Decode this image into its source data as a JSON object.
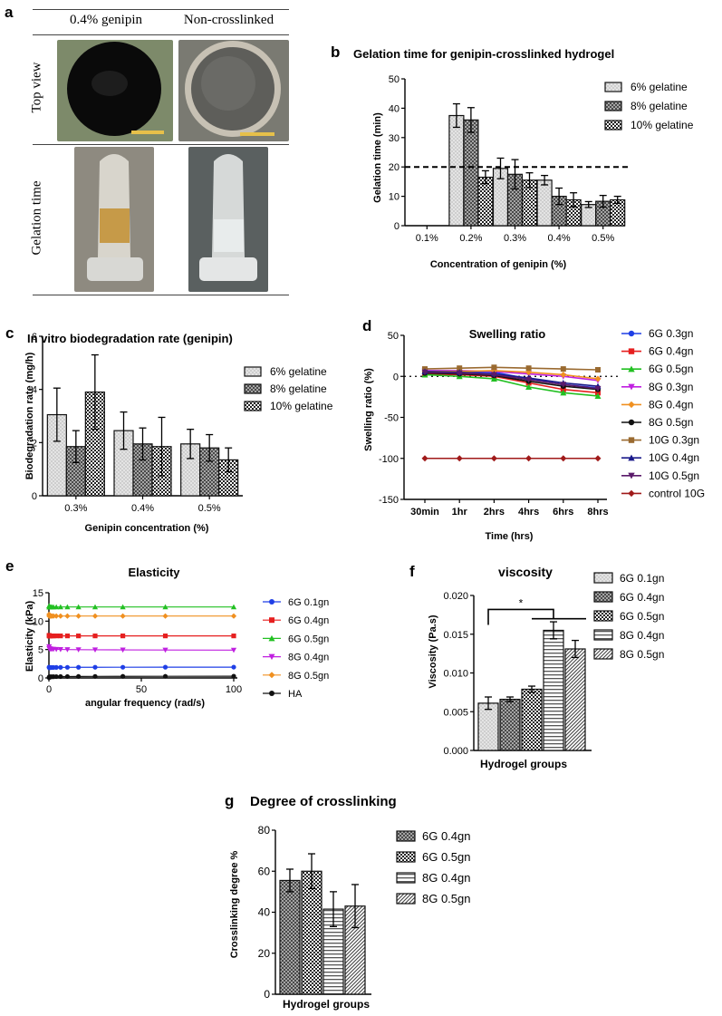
{
  "panel_a": {
    "letter": "a",
    "col1": "0.4% genipin",
    "col2": "Non-crosslinked",
    "row1": "Top view",
    "row2": "Gelation time",
    "photos": [
      "genipin-disc-photo",
      "noncrosslinked-disc-photo",
      "genipin-tube-photo",
      "noncrosslinked-tube-photo"
    ]
  },
  "colors": {
    "bar_edge": "#111111",
    "light_fill": "#d9d9d9",
    "mid_fill": "#9a9a9a",
    "dark_fill": "#3a3a3a"
  },
  "chart_data": [
    {
      "id": "b",
      "letter": "b",
      "type": "bar",
      "title": "Gelation time for genipin-crosslinked hydrogel",
      "xlabel": "Concentration of genipin (%)",
      "ylabel": "Gelation time (min)",
      "ylim": [
        0,
        50
      ],
      "yticks": [
        0,
        10,
        20,
        30,
        40,
        50
      ],
      "categories": [
        "0.1%",
        "0.2%",
        "0.3%",
        "0.4%",
        "0.5%"
      ],
      "series": [
        {
          "name": "6% gelatine",
          "pattern": "dots",
          "values": [
            0,
            37.5,
            19.5,
            15.5,
            7.2
          ],
          "errors": [
            0,
            4,
            3.5,
            1.6,
            1.0
          ]
        },
        {
          "name": "8% gelatine",
          "pattern": "cross",
          "values": [
            0,
            36,
            17.5,
            10,
            8.3
          ],
          "errors": [
            0,
            4.2,
            5,
            2.8,
            2.0
          ]
        },
        {
          "name": "10% gelatine",
          "pattern": "check",
          "values": [
            0,
            16.5,
            15.5,
            8.8,
            8.8
          ],
          "errors": [
            0,
            2.2,
            2.5,
            2.4,
            1.2
          ]
        }
      ],
      "reference_line": 20,
      "legend_position": "top-right"
    },
    {
      "id": "c",
      "letter": "c",
      "type": "bar",
      "title": "In vitro biodegradation rate (genipin)",
      "xlabel": "Genipin concentration (%)",
      "ylabel": "Biodegradation rate (mg/h)",
      "ylim": [
        0,
        6
      ],
      "yticks": [
        0,
        2,
        4,
        6
      ],
      "categories": [
        "0.3%",
        "0.4%",
        "0.5%"
      ],
      "series": [
        {
          "name": "6% gelatine",
          "pattern": "dots",
          "values": [
            3.05,
            2.45,
            1.95
          ],
          "errors": [
            1.0,
            0.7,
            0.55
          ]
        },
        {
          "name": "8% gelatine",
          "pattern": "cross",
          "values": [
            1.85,
            1.95,
            1.8
          ],
          "errors": [
            0.6,
            0.6,
            0.5
          ]
        },
        {
          "name": "10% gelatine",
          "pattern": "check",
          "values": [
            3.9,
            1.85,
            1.35
          ],
          "errors": [
            1.4,
            1.1,
            0.45
          ]
        }
      ],
      "legend_position": "top-right"
    },
    {
      "id": "d",
      "letter": "d",
      "type": "line",
      "title": "Swelling ratio",
      "xlabel": "Time (hrs)",
      "ylabel": "Swelling ratio (%)",
      "ylim": [
        -150,
        50
      ],
      "yticks": [
        -150,
        -100,
        -50,
        0,
        50
      ],
      "categories": [
        "30min",
        "1hr",
        "2hrs",
        "4hrs",
        "6hrs",
        "8hrs"
      ],
      "zero_line": true,
      "series": [
        {
          "name": "6G 0.3gn",
          "color": "#1f3fe6",
          "marker": "circle",
          "values": [
            5,
            6,
            5,
            -3,
            -10,
            -14
          ]
        },
        {
          "name": "6G 0.4gn",
          "color": "#e61f1f",
          "marker": "square",
          "values": [
            3,
            2,
            0,
            -8,
            -16,
            -20
          ]
        },
        {
          "name": "6G 0.5gn",
          "color": "#22c022",
          "marker": "triangle-up",
          "values": [
            2,
            0,
            -3,
            -13,
            -20,
            -24
          ]
        },
        {
          "name": "8G 0.3gn",
          "color": "#c020e0",
          "marker": "triangle-down",
          "values": [
            7,
            7,
            6,
            3,
            0,
            -5
          ]
        },
        {
          "name": "8G 0.4gn",
          "color": "#f09020",
          "marker": "diamond",
          "values": [
            6,
            6,
            7,
            5,
            2,
            -3
          ]
        },
        {
          "name": "8G 0.5gn",
          "color": "#111111",
          "marker": "circle",
          "values": [
            4,
            3,
            1,
            -6,
            -12,
            -16
          ]
        },
        {
          "name": "10G 0.3gn",
          "color": "#9a6a30",
          "marker": "square",
          "values": [
            9,
            10,
            11,
            10,
            9,
            8
          ]
        },
        {
          "name": "10G 0.4gn",
          "color": "#1a1a8a",
          "marker": "triangle-up",
          "values": [
            6,
            5,
            3,
            -2,
            -8,
            -12
          ]
        },
        {
          "name": "10G 0.5gn",
          "color": "#5a1a6a",
          "marker": "triangle-down",
          "values": [
            5,
            4,
            2,
            -4,
            -10,
            -15
          ]
        },
        {
          "name": "control 10G",
          "color": "#a01a1a",
          "marker": "diamond",
          "values": [
            -100,
            -100,
            -100,
            -100,
            -100,
            -100
          ]
        }
      ]
    },
    {
      "id": "e",
      "letter": "e",
      "type": "scatter",
      "title": "Elasticity",
      "xlabel": "angular frequency (rad/s)",
      "ylabel": "Elasticity (kPa)",
      "xlim": [
        0,
        100
      ],
      "ylim": [
        0,
        15
      ],
      "xticks": [
        0,
        50,
        100
      ],
      "yticks": [
        0,
        5,
        10,
        15
      ],
      "x": [
        0.1,
        0.16,
        0.25,
        0.4,
        0.63,
        1,
        1.6,
        2.5,
        4,
        6.3,
        10,
        16,
        25,
        40,
        63,
        100
      ],
      "series": [
        {
          "name": "6G 0.1gn",
          "color": "#1f3fe6",
          "marker": "circle",
          "level_start": 1.9,
          "level": 1.8,
          "level_end": 1.9
        },
        {
          "name": "6G 0.4gn",
          "color": "#e61f1f",
          "marker": "square",
          "level_start": 7.5,
          "level": 7.4,
          "level_end": 7.4
        },
        {
          "name": "6G 0.5gn",
          "color": "#22c022",
          "marker": "triangle-up",
          "level_start": 12.7,
          "level": 12.5,
          "level_end": 12.5
        },
        {
          "name": "8G 0.4gn",
          "color": "#c020e0",
          "marker": "triangle-down",
          "level_start": 5.5,
          "level": 5.2,
          "level_end": 4.9
        },
        {
          "name": "8G 0.5gn",
          "color": "#f09020",
          "marker": "diamond",
          "level_start": 11.2,
          "level": 10.9,
          "level_end": 10.9
        },
        {
          "name": "HA",
          "color": "#111111",
          "marker": "circle",
          "level_start": 0.05,
          "level": 0.15,
          "level_end": 0.3
        }
      ]
    },
    {
      "id": "f",
      "letter": "f",
      "type": "bar",
      "title": "viscosity",
      "xlabel": "Hydrogel groups",
      "ylabel": "Viscosity (Pa.s)",
      "ylim": [
        0,
        0.02
      ],
      "yticks": [
        "0.000",
        "0.005",
        "0.010",
        "0.015",
        "0.020"
      ],
      "ytick_values": [
        0,
        0.005,
        0.01,
        0.015,
        0.02
      ],
      "categories": [
        "6G 0.1gn",
        "6G 0.4gn",
        "6G 0.5gn",
        "8G 0.4gn",
        "8G 0.5gn"
      ],
      "patterns": [
        "dots",
        "cross",
        "check",
        "hlines",
        "diag"
      ],
      "values": [
        0.0061,
        0.0066,
        0.0079,
        0.0155,
        0.0131
      ],
      "errors": [
        0.0008,
        0.0003,
        0.0004,
        0.0011,
        0.0011
      ],
      "significance": "*"
    },
    {
      "id": "g",
      "letter": "g",
      "type": "bar",
      "title": "Degree of crosslinking",
      "xlabel": "Hydrogel groups",
      "ylabel": "Crosslinking degree %",
      "ylim": [
        0,
        80
      ],
      "yticks": [
        0,
        20,
        40,
        60,
        80
      ],
      "categories": [
        "6G 0.4gn",
        "6G 0.5gn",
        "8G 0.4gn",
        "8G 0.5gn"
      ],
      "patterns": [
        "cross",
        "check",
        "hlines",
        "diag"
      ],
      "values": [
        55.5,
        60,
        41.5,
        43
      ],
      "errors": [
        5.5,
        8.5,
        8.5,
        10.5
      ]
    }
  ]
}
